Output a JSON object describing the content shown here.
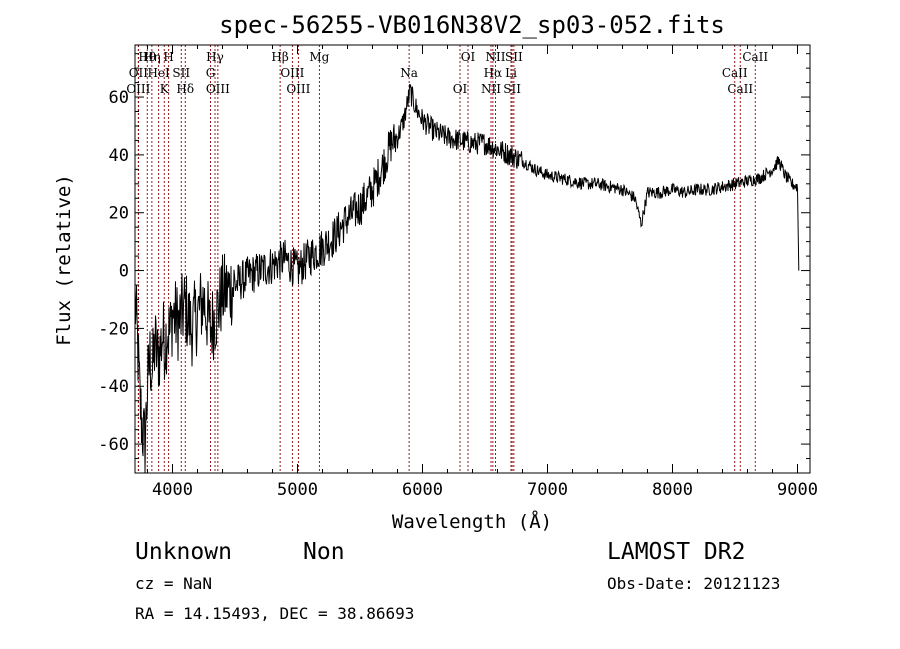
{
  "chart_data": {
    "type": "line",
    "title": "spec-56255-VB016N38V2_sp03-052.fits",
    "xlabel": "Wavelength (Å)",
    "ylabel": "Flux (relative)",
    "xlim": [
      3700,
      9100
    ],
    "ylim": [
      -70,
      78
    ],
    "xticks": [
      4000,
      5000,
      6000,
      7000,
      8000,
      9000
    ],
    "yticks": [
      -60,
      -40,
      -20,
      0,
      20,
      40,
      60
    ],
    "grid": false,
    "line_color": "#000000",
    "marker_color": "#8b0000",
    "series": [
      {
        "x": [
          3700,
          3720,
          3740,
          3760,
          3780,
          3800,
          3820,
          3840,
          3860,
          3880,
          3900,
          3920,
          3940,
          3960,
          3980,
          4000,
          4050,
          4100,
          4150,
          4200,
          4250,
          4300,
          4350,
          4400,
          4500,
          4600,
          4700,
          4800,
          4900,
          5000,
          5100,
          5200,
          5300,
          5400,
          5500,
          5600,
          5700,
          5750,
          5800,
          5850,
          5900,
          5950,
          6000,
          6050,
          6100,
          6200,
          6300,
          6400,
          6500,
          6600,
          6700,
          6800,
          6900,
          7000,
          7100,
          7200,
          7300,
          7400,
          7500,
          7600,
          7700,
          7750,
          7800,
          7900,
          8000,
          8100,
          8200,
          8300,
          8400,
          8500,
          8600,
          8700,
          8800,
          8850,
          8900,
          8950,
          9000,
          9010
        ],
        "y": [
          -10,
          -25,
          -45,
          -55,
          -60,
          -40,
          -30,
          -35,
          -25,
          -30,
          -28,
          -22,
          -25,
          -20,
          -22,
          -15,
          -18,
          -12,
          -20,
          -15,
          -10,
          -20,
          -15,
          -8,
          -5,
          -2,
          0,
          2,
          4,
          0,
          5,
          8,
          12,
          18,
          22,
          28,
          38,
          44,
          46,
          52,
          62,
          56,
          52,
          50,
          48,
          46,
          45,
          44,
          44,
          42,
          40,
          38,
          35,
          33,
          32,
          31,
          30,
          30,
          29,
          28,
          25,
          16,
          27,
          27,
          28,
          27,
          28,
          28,
          29,
          30,
          31,
          32,
          35,
          38,
          33,
          30,
          29,
          0
        ]
      }
    ],
    "lines": [
      {
        "label": "Hθ",
        "wavelength": 3798
      },
      {
        "label": "OII",
        "wavelength": 3727
      },
      {
        "label": "OIII",
        "wavelength": 3727
      },
      {
        "label": "Hη",
        "wavelength": 3835
      },
      {
        "label": "HeI",
        "wavelength": 3889
      },
      {
        "label": "K",
        "wavelength": 3934
      },
      {
        "label": "H",
        "wavelength": 3969
      },
      {
        "label": "SII",
        "wavelength": 4070
      },
      {
        "label": "Hδ",
        "wavelength": 4102
      },
      {
        "label": "Hγ",
        "wavelength": 4340
      },
      {
        "label": "G",
        "wavelength": 4304
      },
      {
        "label": "OIII",
        "wavelength": 4363
      },
      {
        "label": "Hβ",
        "wavelength": 4861
      },
      {
        "label": "OIII",
        "wavelength": 4959
      },
      {
        "label": "OIII",
        "wavelength": 5007
      },
      {
        "label": "Mg",
        "wavelength": 5175
      },
      {
        "label": "Na",
        "wavelength": 5893
      },
      {
        "label": "OI",
        "wavelength": 6300
      },
      {
        "label": "OI",
        "wavelength": 6364
      },
      {
        "label": "Hα",
        "wavelength": 6563
      },
      {
        "label": "NII",
        "wavelength": 6548
      },
      {
        "label": "NII",
        "wavelength": 6584
      },
      {
        "label": "Li",
        "wavelength": 6708
      },
      {
        "label": "SII",
        "wavelength": 6717
      },
      {
        "label": "SII",
        "wavelength": 6731
      },
      {
        "label": "CaII",
        "wavelength": 8498
      },
      {
        "label": "CaII",
        "wavelength": 8542
      },
      {
        "label": "CaII",
        "wavelength": 8662
      }
    ]
  },
  "info": {
    "object_class": "Unknown",
    "subclass": "Non",
    "survey": "LAMOST DR2",
    "redshift": "cz = NaN",
    "obs_date": "Obs-Date: 20121123",
    "coordinates": "RA =  14.15493, DEC =  38.86693"
  }
}
